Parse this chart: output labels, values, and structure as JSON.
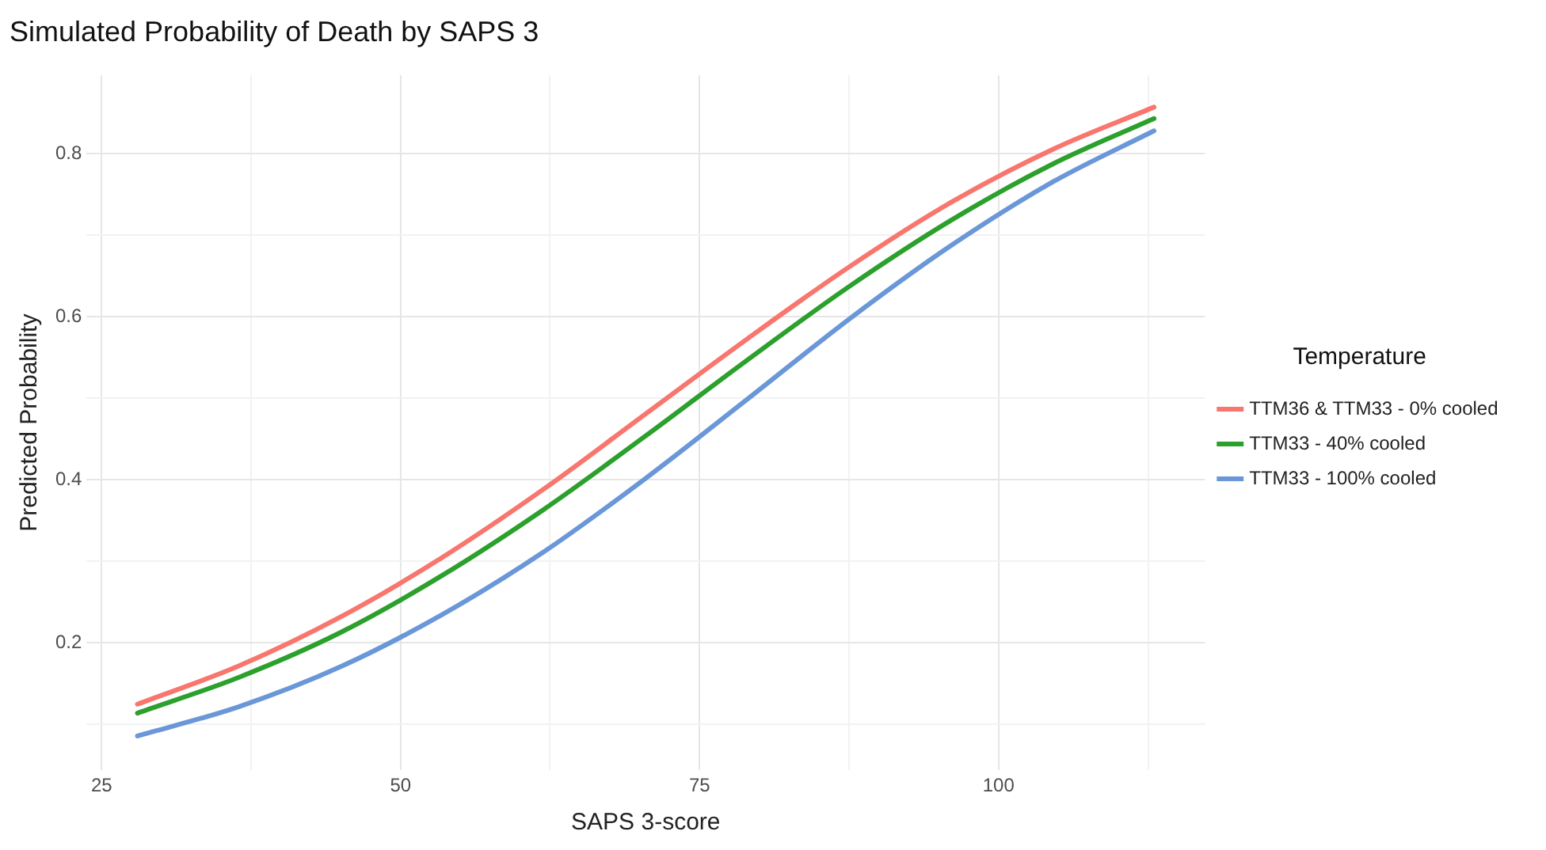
{
  "chart_data": {
    "type": "line",
    "title": "Simulated Probability of Death by SAPS 3",
    "xlabel": "SAPS 3-score",
    "ylabel": "Predicted Probability",
    "legend_title": "Temperature",
    "x": [
      28,
      36.5,
      45,
      53.5,
      62,
      70.5,
      79,
      87.5,
      96,
      104.5,
      113
    ],
    "series": [
      {
        "name": "TTM36 & TTM33 - 0% cooled",
        "color": "#f8766d",
        "values": [
          0.125,
          0.172,
          0.232,
          0.305,
          0.389,
          0.481,
          0.573,
          0.661,
          0.74,
          0.805,
          0.857
        ]
      },
      {
        "name": "TTM33 - 40% cooled",
        "color": "#2ca02c",
        "values": [
          0.114,
          0.158,
          0.213,
          0.283,
          0.364,
          0.454,
          0.547,
          0.637,
          0.718,
          0.787,
          0.843
        ]
      },
      {
        "name": "TTM33 - 100% cooled",
        "color": "#6a97d8",
        "values": [
          0.086,
          0.122,
          0.171,
          0.235,
          0.312,
          0.402,
          0.499,
          0.597,
          0.687,
          0.765,
          0.828
        ]
      }
    ],
    "xlim": [
      23.75,
      117.25
    ],
    "xticks": [
      25,
      {
        "value": 37.5,
        "label": null
      },
      50,
      {
        "value": 62.5,
        "label": null
      },
      75,
      {
        "value": 87.5,
        "label": null
      },
      100,
      {
        "value": 112.5,
        "label": null
      }
    ],
    "ylim": [
      0.044,
      0.896
    ],
    "yticks": [
      {
        "value": 0.1,
        "label": null
      },
      0.2,
      {
        "value": 0.3,
        "label": null
      },
      0.4,
      {
        "value": 0.5,
        "label": null
      },
      0.6,
      {
        "value": 0.7,
        "label": null
      },
      0.8
    ],
    "grid": true,
    "legend": "right",
    "marker": "none",
    "line_style": "solid"
  }
}
